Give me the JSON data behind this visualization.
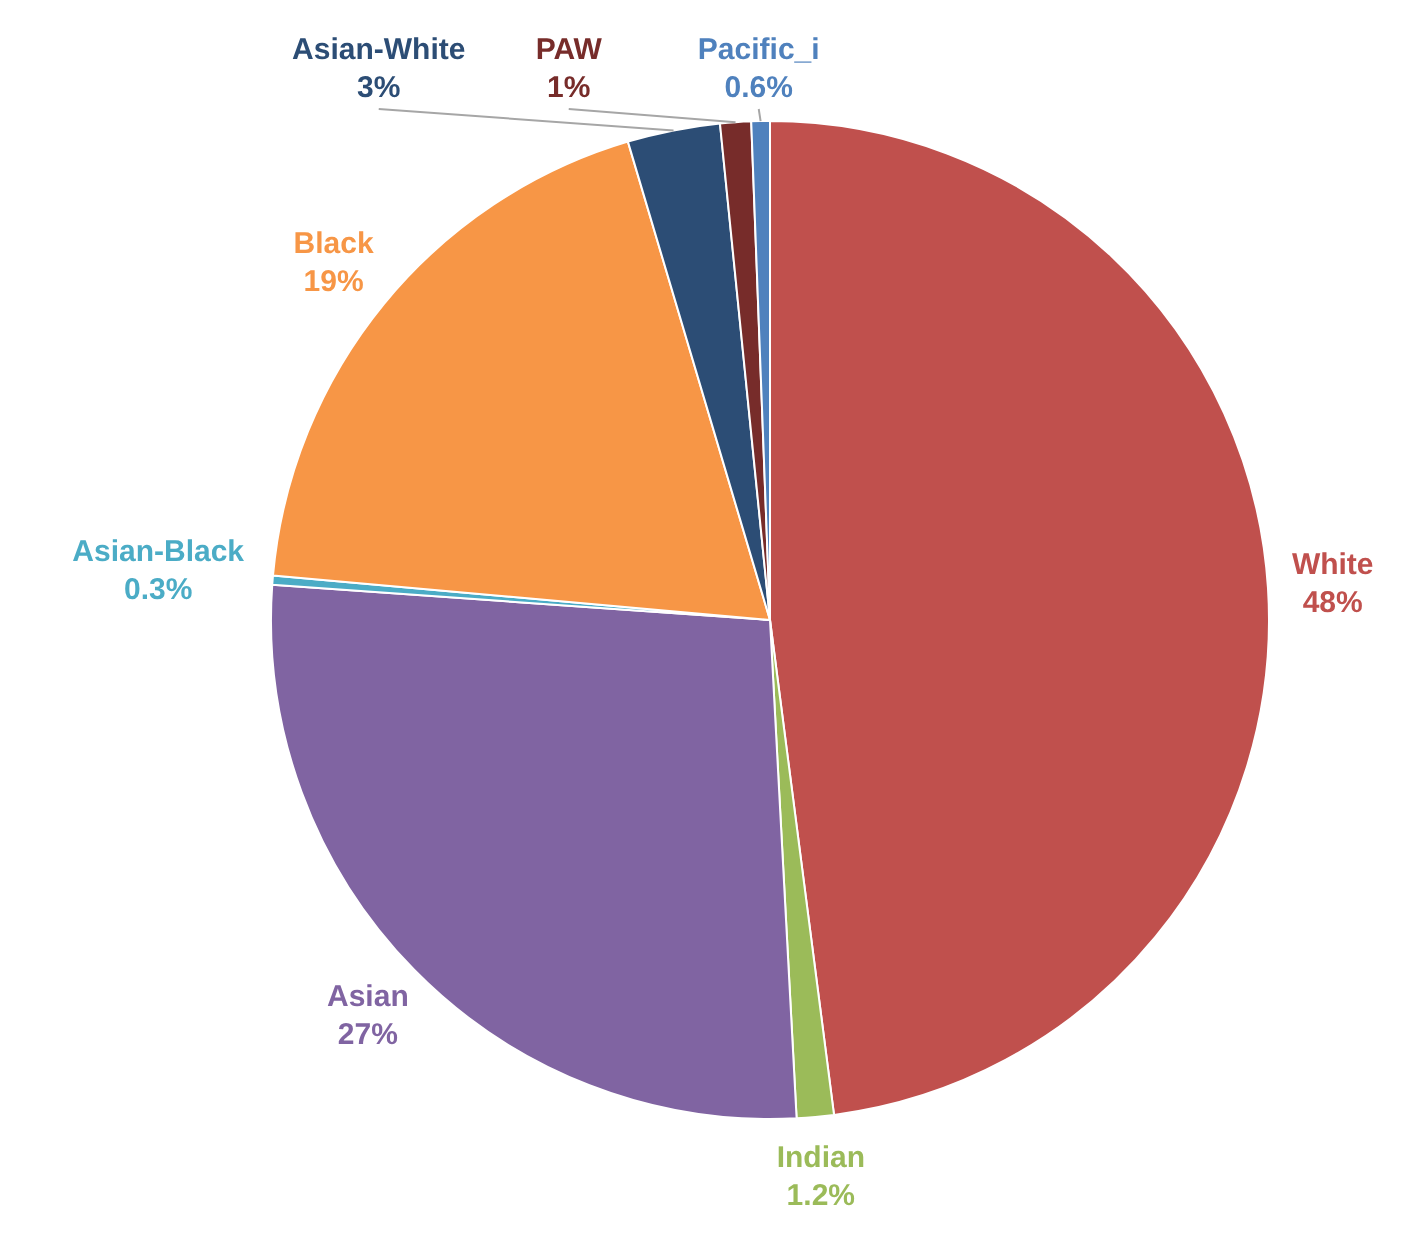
{
  "chart_data": {
    "type": "pie",
    "categories": [
      "White",
      "Indian",
      "Asian",
      "Asian-Black",
      "Black",
      "Asian-White",
      "PAW",
      "Pacific_i"
    ],
    "values": [
      48,
      1.2,
      27,
      0.3,
      19,
      3,
      1,
      0.6
    ],
    "colors": [
      "#c0504d",
      "#9bbb59",
      "#8064a2",
      "#4bacc6",
      "#f79646",
      "#2c4d75",
      "#772c2a",
      "#4f81bd"
    ],
    "value_labels": [
      "48%",
      "1.2%",
      "27%",
      "0.3%",
      "19%",
      "3%",
      "1%",
      "0.6%"
    ],
    "legend": false
  }
}
